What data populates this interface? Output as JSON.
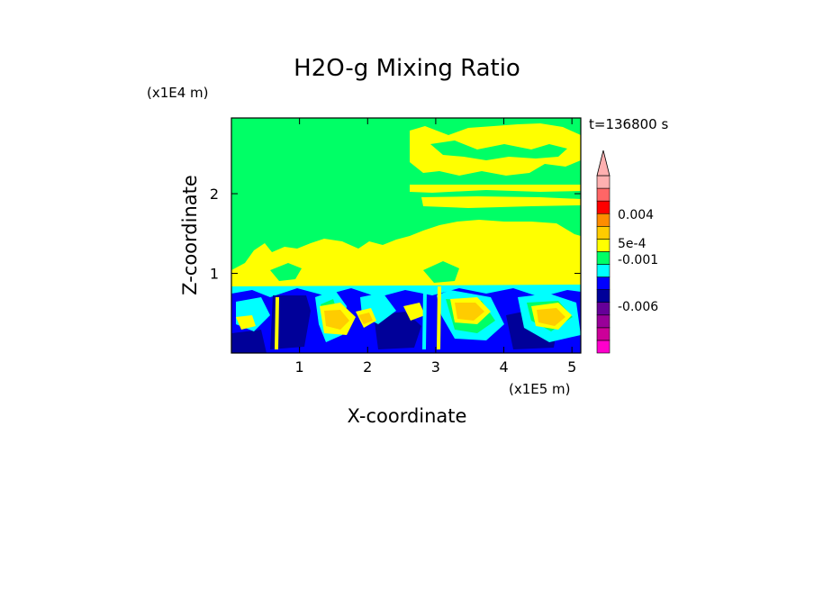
{
  "chart_data": {
    "type": "heatmap",
    "title": "H2O-g Mixing Ratio",
    "xlabel": "X-coordinate",
    "ylabel": "Z-coordinate",
    "x_scale_label": "(x1E5 m)",
    "y_scale_label": "(x1E4 m)",
    "time_label": "t=136800 s",
    "x_ticks": [
      "1",
      "2",
      "3",
      "4",
      "5"
    ],
    "y_ticks": [
      "1",
      "2"
    ],
    "xlim": [
      0,
      5.13
    ],
    "ylim": [
      0,
      2.95
    ],
    "colorbar": {
      "colors": [
        "#ff00cc",
        "#cc0099",
        "#990099",
        "#660099",
        "#000099",
        "#0000ff",
        "#00ffff",
        "#00ff66",
        "#ffff00",
        "#ffcc00",
        "#ff8c00",
        "#ff0000",
        "#ff6666",
        "#ffb0b0"
      ],
      "labels": [
        "0.004",
        "5e-4",
        "-0.001",
        "-0.006"
      ],
      "extend": "max"
    },
    "colors": {
      "background_field": "#00ff66",
      "upper_moist_regions": "#ffff00",
      "lower_layer": "#0000ff",
      "pockets": "#ffcc00",
      "dry_core": "#000099"
    }
  }
}
